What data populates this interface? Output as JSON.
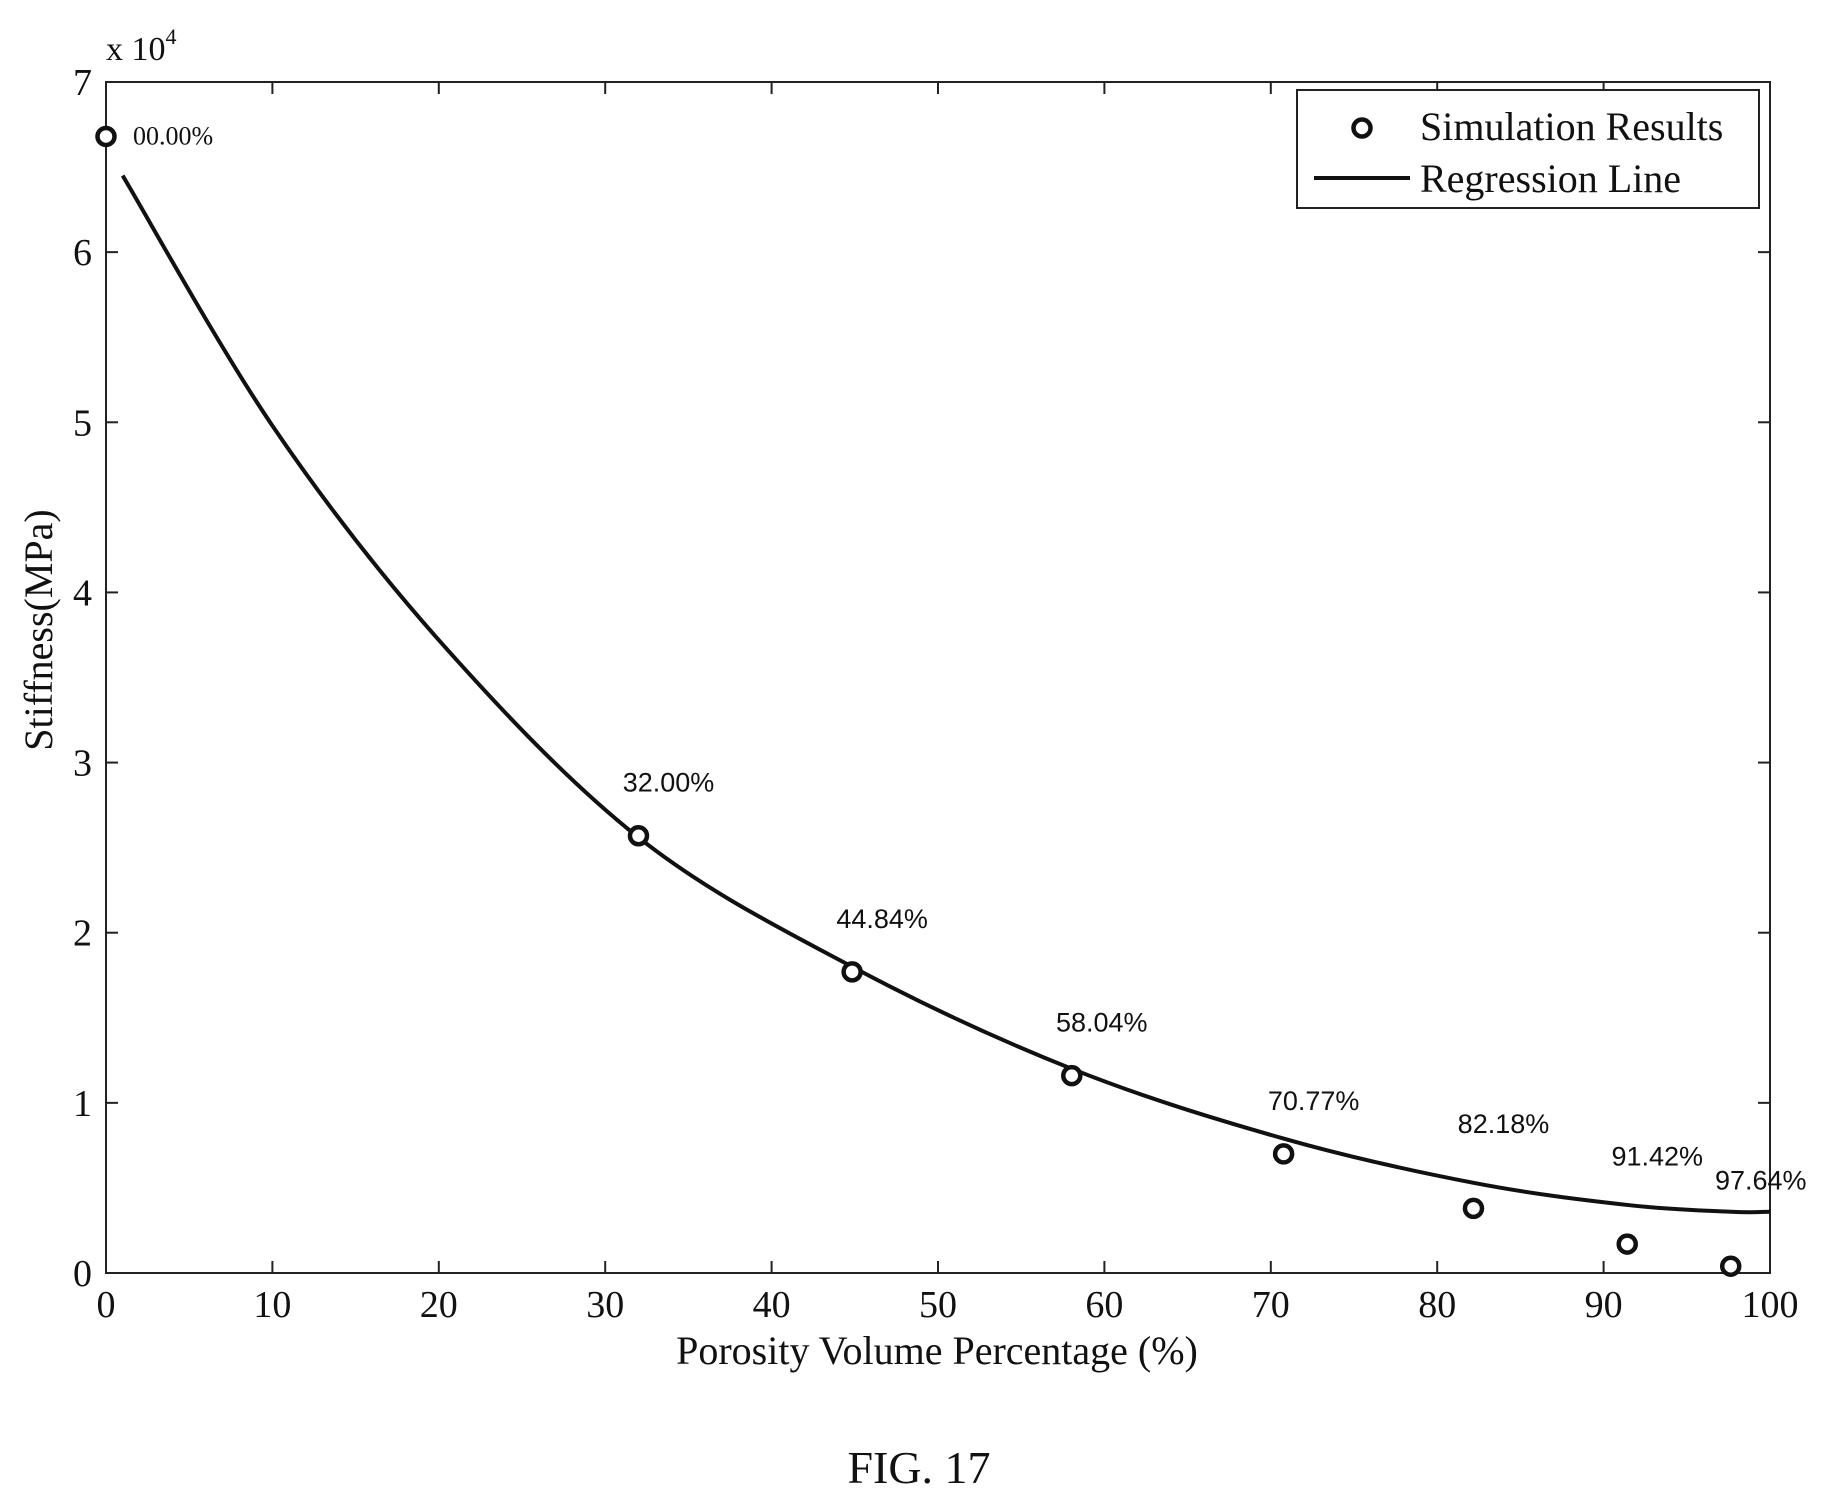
{
  "figure": {
    "caption": "FIG. 17"
  },
  "chart_data": {
    "type": "scatter",
    "title": "",
    "xlabel": "Porosity Volume Percentage (%)",
    "ylabel": "Stiffness(MPa)",
    "y_multiplier_label": "x 10",
    "y_multiplier_exponent": "4",
    "xlim": [
      0,
      100
    ],
    "ylim": [
      0,
      7
    ],
    "xticks": [
      0,
      10,
      20,
      30,
      40,
      50,
      60,
      70,
      80,
      90,
      100
    ],
    "yticks": [
      0,
      1,
      2,
      3,
      4,
      5,
      6,
      7
    ],
    "grid": false,
    "legend": {
      "placement": "top-right",
      "entries": [
        "Simulation Results",
        "Regression Line"
      ]
    },
    "series": [
      {
        "name": "Simulation Results",
        "kind": "scatter",
        "marker": "circle",
        "x": [
          0.0,
          32.0,
          44.84,
          58.04,
          70.77,
          82.18,
          91.42,
          97.64
        ],
        "y": [
          6.68,
          2.57,
          1.77,
          1.16,
          0.7,
          0.38,
          0.17,
          0.04
        ],
        "labels": [
          "00.00%",
          "32.00%",
          "44.84%",
          "58.04%",
          "70.77%",
          "82.18%",
          "91.42%",
          "97.64%"
        ]
      },
      {
        "name": "Regression Line",
        "kind": "line",
        "x": [
          1,
          10,
          20,
          32,
          44.84,
          58.04,
          70.77,
          82.18,
          91.42,
          97.64,
          100
        ],
        "y": [
          6.45,
          4.98,
          3.72,
          2.56,
          1.8,
          1.2,
          0.79,
          0.53,
          0.4,
          0.36,
          0.36
        ]
      }
    ]
  }
}
